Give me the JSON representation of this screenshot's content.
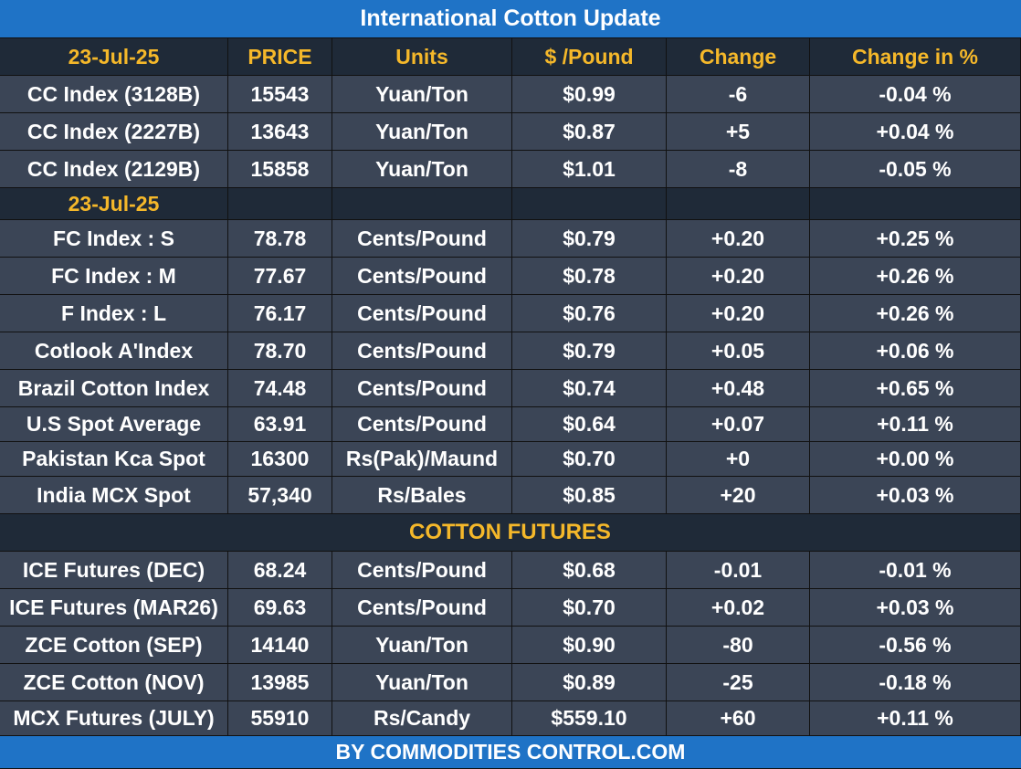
{
  "title": "International Cotton Update",
  "footer": "BY  COMMODITIES CONTROL.COM",
  "columns": [
    "23-Jul-25",
    "PRICE",
    "Units",
    "$ /Pound",
    "Change",
    "Change in %"
  ],
  "section2_date": "23-Jul-25",
  "futures_title": "COTTON FUTURES",
  "cc_rows": [
    [
      "CC Index (3128B)",
      "15543",
      "Yuan/Ton",
      "$0.99",
      "-6",
      "-0.04 %"
    ],
    [
      "CC Index (2227B)",
      "13643",
      "Yuan/Ton",
      "$0.87",
      "+5",
      "+0.04 %"
    ],
    [
      "CC Index (2129B)",
      "15858",
      "Yuan/Ton",
      "$1.01",
      "-8",
      "-0.05 %"
    ]
  ],
  "index_rows": [
    [
      "FC Index : S",
      "78.78",
      "Cents/Pound",
      "$0.79",
      "+0.20",
      "+0.25 %"
    ],
    [
      "FC Index : M",
      "77.67",
      "Cents/Pound",
      "$0.78",
      "+0.20",
      "+0.26 %"
    ],
    [
      "F Index : L",
      "76.17",
      "Cents/Pound",
      "$0.76",
      "+0.20",
      "+0.26 %"
    ],
    [
      "Cotlook A'Index",
      "78.70",
      "Cents/Pound",
      "$0.79",
      "+0.05",
      "+0.06 %"
    ],
    [
      "Brazil Cotton Index",
      "74.48",
      "Cents/Pound",
      "$0.74",
      "+0.48",
      "+0.65 %"
    ],
    [
      "U.S Spot Average",
      "63.91",
      "Cents/Pound",
      "$0.64",
      "+0.07",
      "+0.11 %"
    ],
    [
      "Pakistan Kca Spot",
      "16300",
      "Rs(Pak)/Maund",
      "$0.70",
      "+0",
      "+0.00 %"
    ],
    [
      "India MCX Spot",
      "57,340",
      "Rs/Bales",
      "$0.85",
      "+20",
      "+0.03 %"
    ]
  ],
  "futures_rows": [
    [
      "ICE Futures (DEC)",
      "68.24",
      "Cents/Pound",
      "$0.68",
      "-0.01",
      "-0.01 %"
    ],
    [
      "ICE Futures (MAR26)",
      "69.63",
      "Cents/Pound",
      "$0.70",
      "+0.02",
      "+0.03 %"
    ],
    [
      "ZCE Cotton (SEP)",
      "14140",
      "Yuan/Ton",
      "$0.90",
      "-80",
      "-0.56 %"
    ],
    [
      "ZCE Cotton (NOV)",
      "13985",
      "Yuan/Ton",
      "$0.89",
      "-25",
      "-0.18 %"
    ],
    [
      "MCX Futures (JULY)",
      "55910",
      "Rs/Candy",
      "$559.10",
      "+60",
      "+0.11 %"
    ]
  ],
  "colors": {
    "banner": "#1F73C6",
    "header_bg": "#1F2A38",
    "header_text": "#F5B82A",
    "row_bg": "#3B4556",
    "row_text": "#FFFFFF"
  }
}
